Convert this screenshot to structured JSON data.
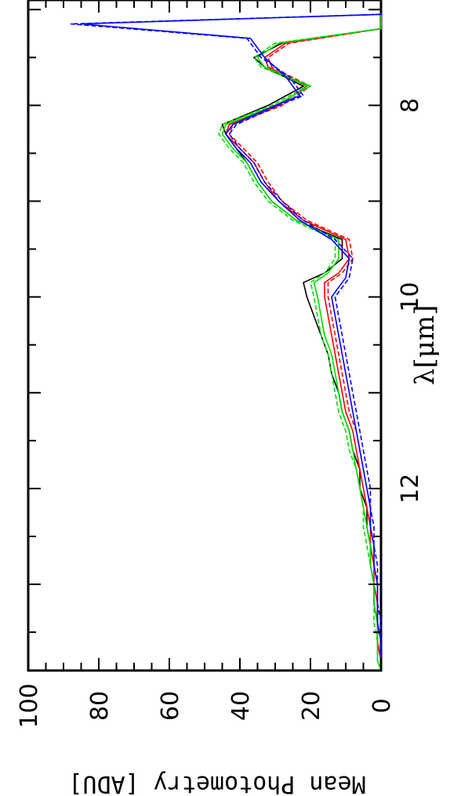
{
  "chart_data": {
    "type": "line",
    "orientation": "rotated-180",
    "xlabel": "λ[μm]",
    "ylabel": "Mean Photometry [ADU]",
    "xlim": [
      6.9,
      13.9
    ],
    "ylim": [
      0,
      100
    ],
    "x_tick_labels": [
      "8",
      "10",
      "12"
    ],
    "x_ticks": [
      8,
      10,
      12
    ],
    "y_tick_labels": [
      "0",
      "20",
      "40",
      "60",
      "80",
      "100"
    ],
    "y_ticks": [
      0,
      20,
      40,
      60,
      80,
      100
    ],
    "grid": false,
    "series": [
      {
        "color": "#000000",
        "style": "solid",
        "x": [
          6.9,
          7.2,
          7.35,
          7.5,
          7.6,
          7.8,
          8.0,
          8.2,
          8.3,
          8.45,
          8.6,
          8.8,
          9.0,
          9.2,
          9.4,
          9.6,
          9.75,
          9.85,
          10.0,
          10.2,
          10.4,
          10.6,
          10.8,
          11.0,
          11.2,
          11.4,
          11.6,
          11.8,
          12.0,
          12.2,
          12.4,
          12.6,
          12.8,
          13.0,
          13.2,
          13.4,
          13.6,
          13.8,
          13.9
        ],
        "values": [
          0,
          0,
          28,
          36,
          33,
          22,
          32,
          45,
          44,
          41,
          38,
          35,
          31,
          24,
          11,
          11,
          16,
          22,
          21,
          19,
          17,
          15,
          14,
          12,
          11,
          9,
          8,
          6,
          6,
          4,
          4,
          3,
          3,
          2,
          2,
          1,
          1,
          0,
          0
        ]
      },
      {
        "color": "#ff0000",
        "style": "solid",
        "x": [
          6.9,
          7.2,
          7.35,
          7.5,
          7.6,
          7.8,
          8.0,
          8.2,
          8.3,
          8.45,
          8.6,
          8.8,
          9.0,
          9.2,
          9.4,
          9.6,
          9.75,
          9.85,
          10.0,
          10.2,
          10.4,
          10.6,
          10.8,
          11.0,
          11.2,
          11.4,
          11.6,
          11.8,
          12.0,
          12.2,
          12.4,
          12.6,
          12.8,
          13.0,
          13.2,
          13.4,
          13.6,
          13.8,
          13.9
        ],
        "values": [
          0,
          0,
          27,
          33,
          32,
          21,
          29,
          43,
          44,
          40,
          36,
          33,
          29,
          22,
          10,
          9,
          12,
          16,
          16,
          15,
          14,
          13,
          12,
          11,
          10,
          8,
          7,
          6,
          5,
          4,
          3,
          3,
          2,
          2,
          1,
          1,
          1,
          0,
          0
        ]
      },
      {
        "color": "#ff0000",
        "style": "dashed",
        "x": [
          6.9,
          7.2,
          7.35,
          7.5,
          7.6,
          7.8,
          8.0,
          8.2,
          8.3,
          8.45,
          8.6,
          8.8,
          9.0,
          9.2,
          9.4,
          9.6,
          9.75,
          9.85,
          10.0,
          10.2,
          10.4,
          10.6,
          10.8,
          11.0,
          11.2,
          11.4,
          11.6,
          11.8,
          12.0,
          12.2,
          12.4,
          12.6,
          12.8,
          13.0,
          13.2,
          13.4,
          13.6,
          13.8,
          13.9
        ],
        "values": [
          0,
          0,
          26,
          32,
          31,
          20,
          28,
          42,
          43,
          39,
          35,
          32,
          28,
          21,
          9,
          8,
          11,
          15,
          15,
          14,
          13,
          12,
          11,
          10,
          9,
          7,
          6,
          5,
          4,
          3,
          3,
          2,
          2,
          1,
          1,
          1,
          0,
          0,
          0
        ]
      },
      {
        "color": "#00dd00",
        "style": "solid",
        "x": [
          6.9,
          7.2,
          7.35,
          7.5,
          7.6,
          7.8,
          8.0,
          8.2,
          8.3,
          8.45,
          8.6,
          8.8,
          9.0,
          9.2,
          9.4,
          9.6,
          9.75,
          9.85,
          10.0,
          10.2,
          10.4,
          10.6,
          10.8,
          11.0,
          11.2,
          11.4,
          11.6,
          11.8,
          12.0,
          12.2,
          12.4,
          12.6,
          12.8,
          13.0,
          13.2,
          13.4,
          13.6,
          13.8,
          13.9
        ],
        "values": [
          0,
          0,
          29,
          35,
          33,
          20,
          30,
          44,
          45,
          42,
          38,
          35,
          31,
          24,
          12,
          12,
          15,
          19,
          18,
          17,
          16,
          14,
          13,
          12,
          11,
          9,
          8,
          7,
          6,
          5,
          4,
          3,
          3,
          2,
          2,
          1,
          1,
          1,
          0
        ]
      },
      {
        "color": "#00dd00",
        "style": "dashed",
        "x": [
          6.9,
          7.2,
          7.35,
          7.5,
          7.6,
          7.8,
          8.0,
          8.2,
          8.3,
          8.45,
          8.6,
          8.8,
          9.0,
          9.2,
          9.4,
          9.6,
          9.75,
          9.85,
          10.0,
          10.2,
          10.4,
          10.6,
          10.8,
          11.0,
          11.2,
          11.4,
          11.6,
          11.8,
          12.0,
          12.2,
          12.4,
          12.6,
          12.8,
          13.0,
          13.2,
          13.4,
          13.6,
          13.8,
          13.9
        ],
        "values": [
          0,
          0,
          30,
          36,
          34,
          21,
          31,
          45,
          46,
          43,
          39,
          36,
          32,
          25,
          13,
          13,
          16,
          20,
          19,
          18,
          17,
          15,
          14,
          13,
          12,
          10,
          9,
          7,
          6,
          5,
          5,
          4,
          3,
          2,
          2,
          2,
          1,
          1,
          0
        ]
      },
      {
        "color": "#0000ff",
        "style": "solid",
        "x": [
          6.9,
          7.05,
          7.15,
          7.3,
          7.5,
          7.7,
          7.9,
          8.0,
          8.2,
          8.3,
          8.45,
          8.6,
          8.8,
          9.0,
          9.2,
          9.4,
          9.6,
          9.8,
          10.0,
          10.2,
          10.4,
          10.6,
          10.8,
          11.0,
          11.2,
          11.4,
          11.6,
          11.8,
          12.0,
          12.2,
          12.4,
          12.6,
          12.8,
          13.0,
          13.2,
          13.4,
          13.6,
          13.8,
          13.9
        ],
        "values": [
          0,
          0,
          85,
          37,
          33,
          27,
          23,
          30,
          42,
          44,
          41,
          37,
          34,
          29,
          23,
          14,
          9,
          10,
          14,
          13,
          12,
          11,
          10,
          9,
          8,
          7,
          6,
          5,
          4,
          3,
          3,
          2,
          2,
          1,
          1,
          1,
          0,
          0,
          0
        ]
      },
      {
        "color": "#0000ff",
        "style": "dashed",
        "x": [
          6.9,
          7.05,
          7.15,
          7.3,
          7.5,
          7.7,
          7.9,
          8.0,
          8.2,
          8.3,
          8.45,
          8.6,
          8.8,
          9.0,
          9.2,
          9.4,
          9.6,
          9.8,
          10.0,
          10.2,
          10.4,
          10.6,
          10.8,
          11.0,
          11.2,
          11.4,
          11.6,
          11.8,
          12.0,
          12.2,
          12.4,
          12.6,
          12.8,
          13.0,
          13.2,
          13.4,
          13.6,
          13.8,
          13.9
        ],
        "values": [
          0,
          0,
          88,
          38,
          34,
          26,
          22,
          29,
          41,
          43,
          40,
          36,
          33,
          28,
          22,
          13,
          8,
          9,
          13,
          12,
          11,
          10,
          9,
          8,
          7,
          6,
          5,
          4,
          3,
          3,
          2,
          2,
          1,
          1,
          1,
          0,
          0,
          0,
          0
        ]
      }
    ]
  }
}
